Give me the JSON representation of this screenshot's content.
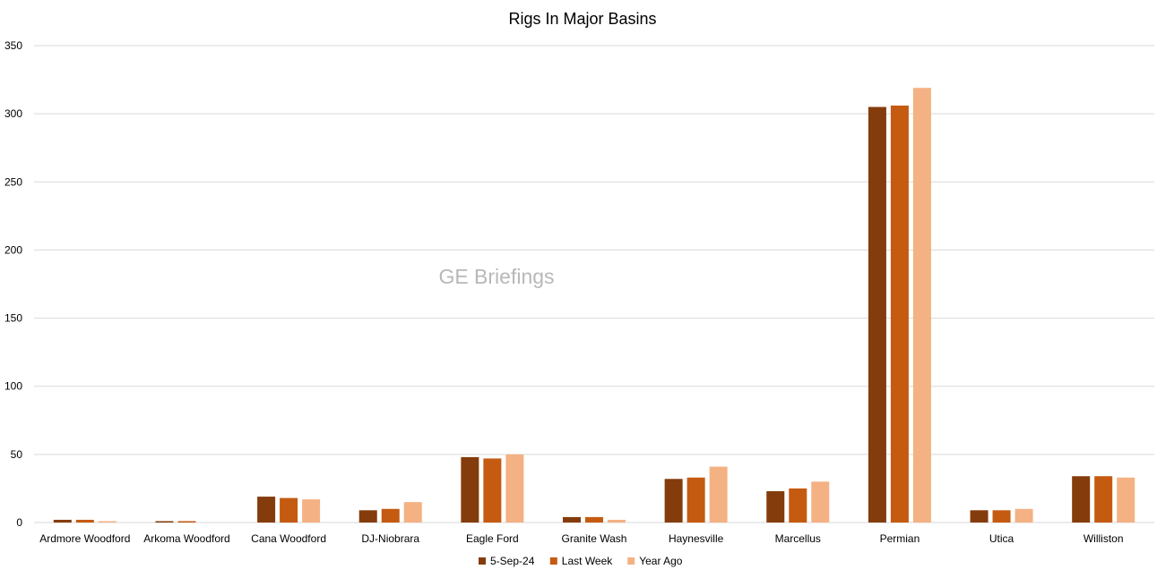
{
  "watermark": "GE Briefings",
  "chart_data": {
    "type": "bar",
    "title": "Rigs In Major Basins",
    "xlabel": "",
    "ylabel": "",
    "ylim": [
      0,
      350
    ],
    "yticks": [
      0,
      50,
      100,
      150,
      200,
      250,
      300,
      350
    ],
    "grid": true,
    "legend_position": "bottom",
    "categories": [
      "Ardmore Woodford",
      "Arkoma Woodford",
      "Cana Woodford",
      "DJ-Niobrara",
      "Eagle Ford",
      "Granite Wash",
      "Haynesville",
      "Marcellus",
      "Permian",
      "Utica",
      "Williston"
    ],
    "series": [
      {
        "name": "5-Sep-24",
        "color": "#843C0C",
        "values": [
          2,
          1,
          19,
          9,
          48,
          4,
          32,
          23,
          305,
          9,
          34
        ]
      },
      {
        "name": "Last Week",
        "color": "#C55A11",
        "values": [
          2,
          1,
          18,
          10,
          47,
          4,
          33,
          25,
          306,
          9,
          34
        ]
      },
      {
        "name": "Year Ago",
        "color": "#F4B183",
        "values": [
          1,
          0,
          17,
          15,
          50,
          2,
          41,
          30,
          319,
          10,
          33
        ]
      }
    ]
  }
}
